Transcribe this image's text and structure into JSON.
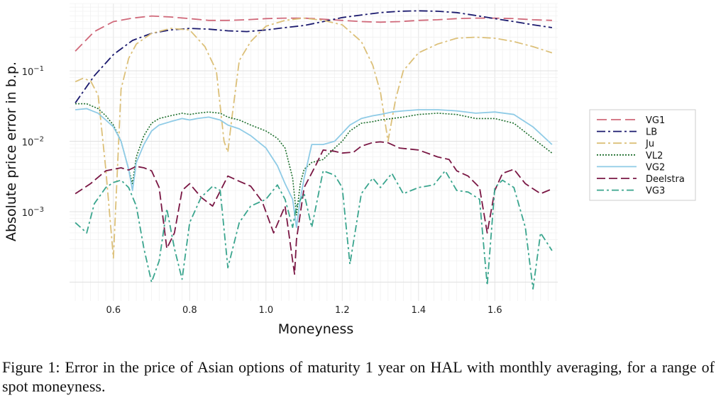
{
  "chart_data": {
    "type": "line",
    "xlabel": "Moneyness",
    "ylabel": "Absolute price error in b.p.",
    "xlim": [
      0.485,
      1.765
    ],
    "ylim_log10": [
      -3.95,
      -2.0
    ],
    "yscale": "log",
    "y_ticks_exp": [
      -1,
      -2,
      -3
    ],
    "y_tick_base": "10",
    "x_ticks": [
      "0.6",
      "0.8",
      "1.0",
      "1.2",
      "1.4",
      "1.6"
    ],
    "x_tick_values": [
      0.6,
      0.8,
      1.0,
      1.2,
      1.4,
      1.6
    ],
    "grid": true,
    "legend_position": "right",
    "series": [
      {
        "name": "VG1",
        "color": "#d0697a",
        "dash": "14,6",
        "x": [
          0.5,
          0.55,
          0.6,
          0.65,
          0.7,
          0.75,
          0.8,
          0.85,
          0.9,
          0.95,
          1.0,
          1.05,
          1.1,
          1.15,
          1.2,
          1.25,
          1.3,
          1.35,
          1.4,
          1.45,
          1.5,
          1.55,
          1.6,
          1.65,
          1.7,
          1.75
        ],
        "y": [
          0.19,
          0.36,
          0.5,
          0.56,
          0.6,
          0.58,
          0.55,
          0.52,
          0.52,
          0.53,
          0.55,
          0.56,
          0.56,
          0.54,
          0.52,
          0.5,
          0.49,
          0.5,
          0.52,
          0.53,
          0.55,
          0.56,
          0.56,
          0.55,
          0.53,
          0.52
        ]
      },
      {
        "name": "LB",
        "color": "#1b1a6e",
        "dash": "12,4,3,4",
        "x": [
          0.5,
          0.55,
          0.6,
          0.65,
          0.7,
          0.75,
          0.8,
          0.85,
          0.9,
          0.95,
          1.0,
          1.05,
          1.1,
          1.15,
          1.2,
          1.25,
          1.3,
          1.35,
          1.4,
          1.45,
          1.5,
          1.55,
          1.6,
          1.65,
          1.7,
          1.75
        ],
        "y": [
          0.035,
          0.085,
          0.17,
          0.27,
          0.34,
          0.38,
          0.4,
          0.39,
          0.37,
          0.36,
          0.38,
          0.41,
          0.44,
          0.5,
          0.57,
          0.62,
          0.67,
          0.7,
          0.71,
          0.7,
          0.67,
          0.61,
          0.55,
          0.5,
          0.45,
          0.41
        ]
      },
      {
        "name": "Ju",
        "color": "#dcc079",
        "dash": "12,4,3,4",
        "x": [
          0.5,
          0.52,
          0.54,
          0.56,
          0.58,
          0.6,
          0.62,
          0.64,
          0.66,
          0.7,
          0.75,
          0.8,
          0.84,
          0.87,
          0.89,
          0.9,
          0.91,
          0.93,
          0.96,
          1.0,
          1.05,
          1.1,
          1.15,
          1.2,
          1.25,
          1.28,
          1.3,
          1.32,
          1.34,
          1.36,
          1.4,
          1.45,
          1.5,
          1.55,
          1.6,
          1.65,
          1.7,
          1.75
        ],
        "y": [
          0.07,
          0.078,
          0.072,
          0.045,
          0.004,
          0.00022,
          0.055,
          0.15,
          0.24,
          0.34,
          0.4,
          0.38,
          0.22,
          0.1,
          0.01,
          0.007,
          0.02,
          0.14,
          0.26,
          0.43,
          0.52,
          0.56,
          0.52,
          0.45,
          0.26,
          0.12,
          0.05,
          0.01,
          0.04,
          0.1,
          0.18,
          0.24,
          0.29,
          0.3,
          0.29,
          0.26,
          0.22,
          0.18
        ]
      },
      {
        "name": "VL2",
        "color": "#1c6e2c",
        "dash": "2,2",
        "x": [
          0.5,
          0.53,
          0.56,
          0.58,
          0.6,
          0.62,
          0.64,
          0.65,
          0.66,
          0.68,
          0.7,
          0.72,
          0.75,
          0.78,
          0.8,
          0.82,
          0.85,
          0.88,
          0.9,
          0.93,
          0.96,
          1.0,
          1.03,
          1.05,
          1.07,
          1.08,
          1.09,
          1.1,
          1.12,
          1.15,
          1.18,
          1.2,
          1.22,
          1.25,
          1.28,
          1.3,
          1.33,
          1.36,
          1.4,
          1.45,
          1.5,
          1.55,
          1.6,
          1.65,
          1.7,
          1.75
        ],
        "y": [
          0.034,
          0.034,
          0.029,
          0.023,
          0.017,
          0.01,
          0.004,
          0.0025,
          0.006,
          0.012,
          0.018,
          0.021,
          0.023,
          0.025,
          0.024,
          0.025,
          0.026,
          0.025,
          0.022,
          0.02,
          0.017,
          0.014,
          0.011,
          0.008,
          0.003,
          0.0009,
          0.0025,
          0.004,
          0.005,
          0.0055,
          0.008,
          0.01,
          0.014,
          0.018,
          0.019,
          0.02,
          0.021,
          0.022,
          0.024,
          0.025,
          0.024,
          0.021,
          0.021,
          0.018,
          0.011,
          0.0068
        ]
      },
      {
        "name": "VG2",
        "color": "#8fcbe6",
        "dash": "",
        "x": [
          0.5,
          0.53,
          0.56,
          0.58,
          0.6,
          0.62,
          0.64,
          0.65,
          0.66,
          0.68,
          0.7,
          0.72,
          0.75,
          0.78,
          0.8,
          0.82,
          0.85,
          0.88,
          0.9,
          0.93,
          0.96,
          1.0,
          1.03,
          1.05,
          1.07,
          1.08,
          1.09,
          1.1,
          1.12,
          1.15,
          1.18,
          1.2,
          1.22,
          1.25,
          1.28,
          1.3,
          1.33,
          1.36,
          1.4,
          1.45,
          1.5,
          1.55,
          1.6,
          1.65,
          1.7,
          1.75
        ],
        "y": [
          0.028,
          0.029,
          0.025,
          0.02,
          0.016,
          0.01,
          0.004,
          0.002,
          0.005,
          0.009,
          0.014,
          0.017,
          0.019,
          0.021,
          0.02,
          0.021,
          0.022,
          0.02,
          0.017,
          0.015,
          0.012,
          0.008,
          0.0045,
          0.0025,
          0.0015,
          0.0006,
          0.0015,
          0.003,
          0.009,
          0.009,
          0.01,
          0.013,
          0.017,
          0.021,
          0.023,
          0.024,
          0.026,
          0.027,
          0.028,
          0.028,
          0.027,
          0.025,
          0.026,
          0.024,
          0.016,
          0.009
        ]
      },
      {
        "name": "Deelstra",
        "color": "#7a1744",
        "dash": "12,5",
        "x": [
          0.5,
          0.54,
          0.58,
          0.62,
          0.64,
          0.66,
          0.68,
          0.7,
          0.72,
          0.74,
          0.76,
          0.78,
          0.8,
          0.83,
          0.86,
          0.9,
          0.93,
          0.96,
          0.99,
          1.02,
          1.05,
          1.07,
          1.075,
          1.08,
          1.1,
          1.13,
          1.15,
          1.18,
          1.2,
          1.23,
          1.25,
          1.28,
          1.3,
          1.32,
          1.35,
          1.4,
          1.45,
          1.48,
          1.5,
          1.53,
          1.56,
          1.58,
          1.6,
          1.62,
          1.65,
          1.68,
          1.72,
          1.75
        ],
        "y": [
          0.0018,
          0.0025,
          0.0038,
          0.0042,
          0.0039,
          0.0044,
          0.0042,
          0.0038,
          0.0022,
          0.0003,
          0.0005,
          0.002,
          0.0025,
          0.0016,
          0.0012,
          0.0032,
          0.0027,
          0.0023,
          0.0014,
          0.0005,
          0.0012,
          0.0002,
          0.00013,
          0.0004,
          0.0022,
          0.0045,
          0.0075,
          0.0072,
          0.0068,
          0.007,
          0.0085,
          0.0096,
          0.0098,
          0.0095,
          0.008,
          0.0075,
          0.006,
          0.0055,
          0.0038,
          0.0032,
          0.0022,
          0.0005,
          0.002,
          0.0035,
          0.004,
          0.0025,
          0.0018,
          0.0021
        ]
      },
      {
        "name": "VG3",
        "color": "#3aa58e",
        "dash": "10,4,3,4",
        "x": [
          0.5,
          0.53,
          0.55,
          0.58,
          0.6,
          0.62,
          0.64,
          0.66,
          0.68,
          0.7,
          0.72,
          0.74,
          0.76,
          0.78,
          0.8,
          0.83,
          0.86,
          0.88,
          0.9,
          0.93,
          0.96,
          1.0,
          1.03,
          1.05,
          1.07,
          1.08,
          1.1,
          1.12,
          1.15,
          1.18,
          1.2,
          1.22,
          1.25,
          1.28,
          1.3,
          1.33,
          1.36,
          1.4,
          1.44,
          1.47,
          1.5,
          1.53,
          1.56,
          1.58,
          1.6,
          1.62,
          1.65,
          1.68,
          1.7,
          1.72,
          1.75
        ],
        "y": [
          0.0007,
          0.0005,
          0.0013,
          0.0022,
          0.0026,
          0.0028,
          0.0022,
          0.0012,
          0.0003,
          0.0001,
          0.0002,
          0.0011,
          0.0003,
          0.00011,
          0.0007,
          0.0016,
          0.0023,
          0.002,
          0.00016,
          0.0007,
          0.0012,
          0.0015,
          0.0024,
          0.0015,
          0.0006,
          0.0012,
          0.0018,
          0.0006,
          0.0038,
          0.0033,
          0.0022,
          0.00018,
          0.0018,
          0.003,
          0.0022,
          0.0035,
          0.0018,
          0.0022,
          0.0024,
          0.0038,
          0.002,
          0.0019,
          0.0015,
          9e-05,
          0.0022,
          0.0028,
          0.0022,
          0.0006,
          8e-05,
          0.0005,
          0.00028
        ]
      }
    ]
  },
  "caption": {
    "text": "Figure 1:  Error in the price of Asian options of maturity 1 year on HAL with monthly averaging, for a range of spot moneyness."
  }
}
